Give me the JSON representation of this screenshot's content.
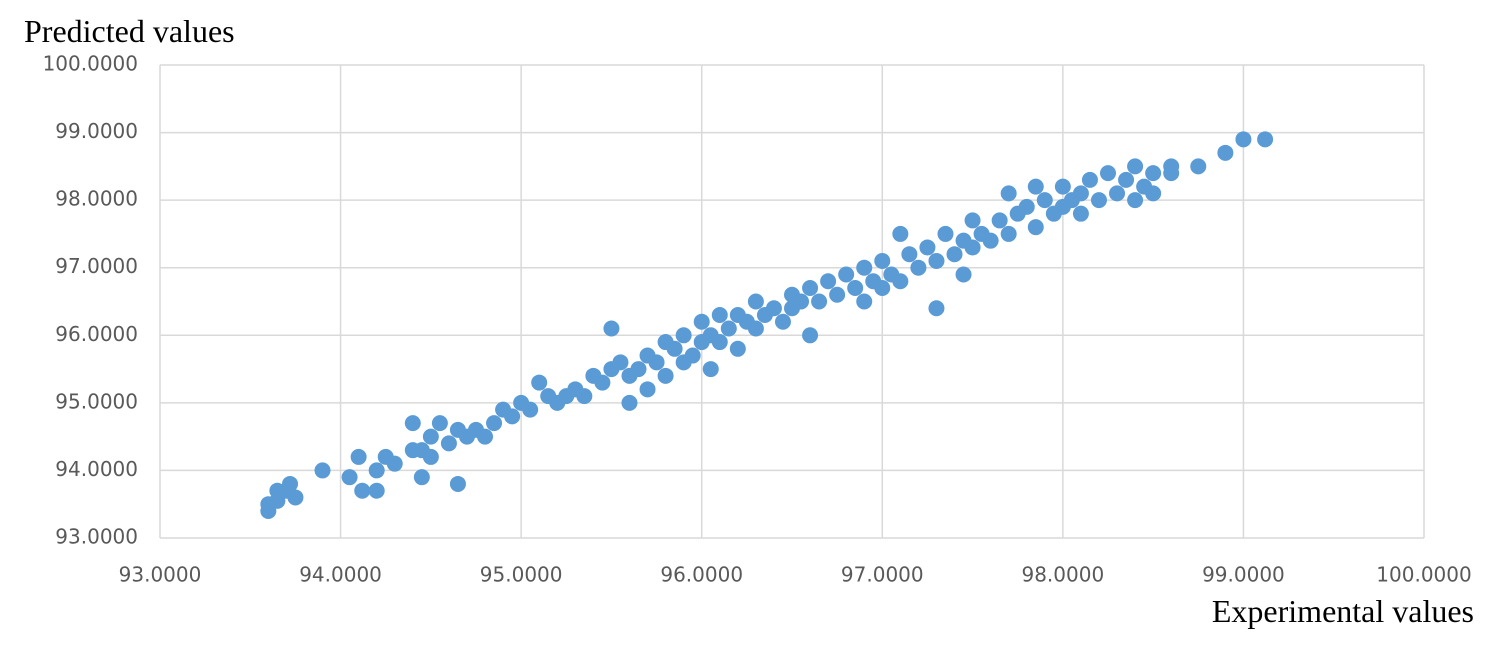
{
  "chart_data": {
    "type": "scatter",
    "ylabel": "Predicted values",
    "xlabel": "Experimental values",
    "color": "#5b9bd5",
    "grid": true,
    "xlim": [
      93,
      100
    ],
    "ylim": [
      93,
      100
    ],
    "xticks": [
      {
        "value": 93,
        "label": "93.0000"
      },
      {
        "value": 94,
        "label": "94.0000"
      },
      {
        "value": 95,
        "label": "95.0000"
      },
      {
        "value": 96,
        "label": "96.0000"
      },
      {
        "value": 97,
        "label": "97.0000"
      },
      {
        "value": 98,
        "label": "98.0000"
      },
      {
        "value": 99,
        "label": "99.0000"
      },
      {
        "value": 100,
        "label": "100.0000"
      }
    ],
    "yticks": [
      {
        "value": 93,
        "label": "93.0000"
      },
      {
        "value": 94,
        "label": "94.0000"
      },
      {
        "value": 95,
        "label": "95.0000"
      },
      {
        "value": 96,
        "label": "96.0000"
      },
      {
        "value": 97,
        "label": "97.0000"
      },
      {
        "value": 98,
        "label": "98.0000"
      },
      {
        "value": 99,
        "label": "99.0000"
      },
      {
        "value": 100,
        "label": "100.0000"
      }
    ],
    "x": [
      93.6,
      93.6,
      93.65,
      93.7,
      93.72,
      93.75,
      93.65,
      93.9,
      94.05,
      94.1,
      94.12,
      94.2,
      94.2,
      94.25,
      94.3,
      94.4,
      94.4,
      94.45,
      94.45,
      94.5,
      94.5,
      94.55,
      94.6,
      94.65,
      94.65,
      94.7,
      94.75,
      94.8,
      94.85,
      94.9,
      94.95,
      95.0,
      95.05,
      95.1,
      95.15,
      95.2,
      95.25,
      95.3,
      95.35,
      95.4,
      95.45,
      95.5,
      95.5,
      95.55,
      95.6,
      95.6,
      95.65,
      95.7,
      95.7,
      95.75,
      95.8,
      95.8,
      95.85,
      95.9,
      95.9,
      95.95,
      96.0,
      96.0,
      96.05,
      96.05,
      96.1,
      96.1,
      96.15,
      96.2,
      96.2,
      96.25,
      96.3,
      96.3,
      96.35,
      96.4,
      96.45,
      96.5,
      96.5,
      96.55,
      96.6,
      96.6,
      96.65,
      96.7,
      96.75,
      96.8,
      96.85,
      96.9,
      96.9,
      96.95,
      97.0,
      97.0,
      97.05,
      97.1,
      97.1,
      97.15,
      97.2,
      97.25,
      97.3,
      97.3,
      97.35,
      97.4,
      97.45,
      97.45,
      97.5,
      97.5,
      97.55,
      97.6,
      97.65,
      97.7,
      97.7,
      97.75,
      97.8,
      97.85,
      97.85,
      97.9,
      97.95,
      98.0,
      98.0,
      98.05,
      98.1,
      98.1,
      98.15,
      98.2,
      98.25,
      98.3,
      98.35,
      98.4,
      98.4,
      98.45,
      98.5,
      98.5,
      98.6,
      98.6,
      98.75,
      98.9,
      99.0,
      99.12
    ],
    "values": [
      93.4,
      93.5,
      93.55,
      93.7,
      93.8,
      93.6,
      93.7,
      94.0,
      93.9,
      94.2,
      93.7,
      93.7,
      94.0,
      94.2,
      94.1,
      94.3,
      94.7,
      93.9,
      94.3,
      94.5,
      94.2,
      94.7,
      94.4,
      93.8,
      94.6,
      94.5,
      94.6,
      94.5,
      94.7,
      94.9,
      94.8,
      95.0,
      94.9,
      95.3,
      95.1,
      95.0,
      95.1,
      95.2,
      95.1,
      95.4,
      95.3,
      96.1,
      95.5,
      95.6,
      95.0,
      95.4,
      95.5,
      95.2,
      95.7,
      95.6,
      95.9,
      95.4,
      95.8,
      96.0,
      95.6,
      95.7,
      96.2,
      95.9,
      95.5,
      96.0,
      96.3,
      95.9,
      96.1,
      96.3,
      95.8,
      96.2,
      96.5,
      96.1,
      96.3,
      96.4,
      96.2,
      96.6,
      96.4,
      96.5,
      96.0,
      96.7,
      96.5,
      96.8,
      96.6,
      96.9,
      96.7,
      97.0,
      96.5,
      96.8,
      97.1,
      96.7,
      96.9,
      97.5,
      96.8,
      97.2,
      97.0,
      97.3,
      96.4,
      97.1,
      97.5,
      97.2,
      96.9,
      97.4,
      97.7,
      97.3,
      97.5,
      97.4,
      97.7,
      97.5,
      98.1,
      97.8,
      97.9,
      97.6,
      98.2,
      98.0,
      97.8,
      98.2,
      97.9,
      98.0,
      97.8,
      98.1,
      98.3,
      98.0,
      98.4,
      98.1,
      98.3,
      98.5,
      98.0,
      98.2,
      98.4,
      98.1,
      98.5,
      98.4,
      98.5,
      98.7,
      98.9,
      98.9
    ]
  }
}
